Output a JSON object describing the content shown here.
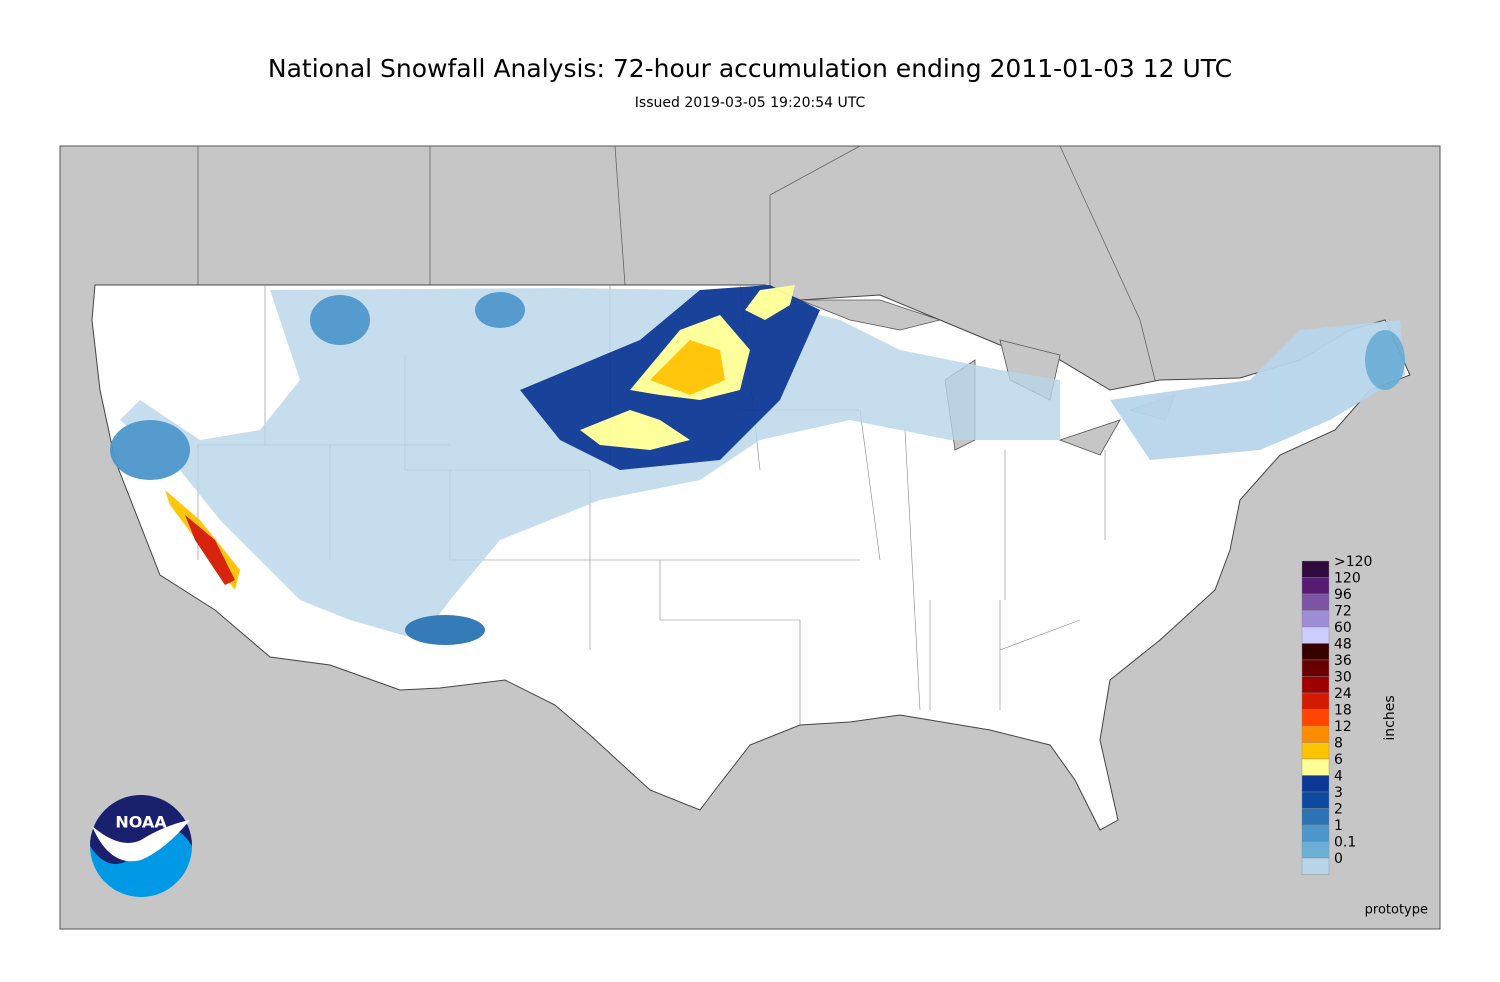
{
  "header": {
    "title": "National Snowfall Analysis: 72-hour accumulation ending 2011-01-03 12 UTC",
    "subtitle": "Issued 2019-03-05 19:20:54 UTC"
  },
  "legend": {
    "labels": [
      ">120",
      "120",
      "96",
      "72",
      "60",
      "48",
      "36",
      "30",
      "24",
      "18",
      "12",
      "8",
      "6",
      "4",
      "3",
      "2",
      "1",
      "0.1",
      "0"
    ],
    "colors": [
      "#2e0a3f",
      "#561c72",
      "#7c52a5",
      "#9f8cd8",
      "#ccccff",
      "#360000",
      "#690000",
      "#9e0000",
      "#d41a00",
      "#ff4500",
      "#ff8c00",
      "#ffc400",
      "#ffff96",
      "#0d3896",
      "#0c4aa0",
      "#2a74b5",
      "#4d96cc",
      "#6baed6",
      "#b8d5ea"
    ],
    "unit": "inches"
  },
  "footer": {
    "note": "prototype"
  },
  "logo": {
    "text": "NOAA"
  }
}
